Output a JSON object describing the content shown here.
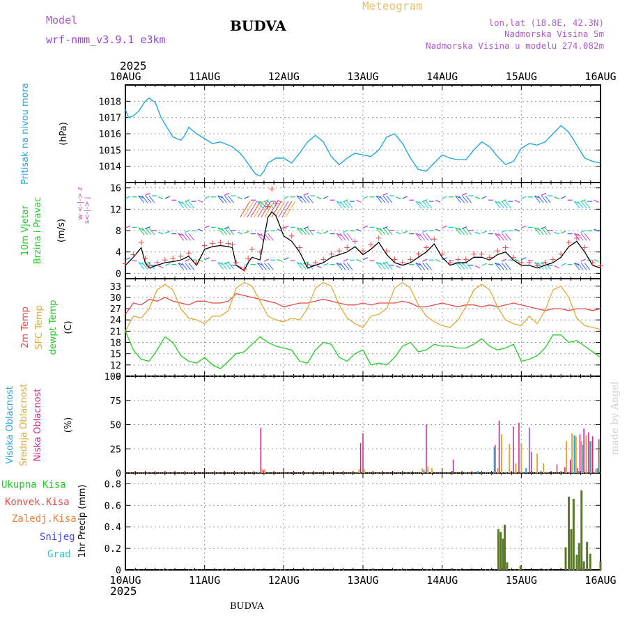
{
  "header": {
    "model_label": "Model",
    "model_name": "wrf-nmm_v3.9.1 e3km",
    "station": "BUDVA",
    "meteogram": "Meteogram",
    "lonlat": "lon,lat (18.8E, 42.3N)",
    "elev": "Nadmorska Visina 5m",
    "elev_model": "Nadmorska Visina u modelu 274.082m",
    "year_top": "2025",
    "year_bottom": "2025",
    "footer": "BUDVA",
    "credit": "made by Angel"
  },
  "colors": {
    "pressure": "#22a7e0",
    "wind_green": "#22cc22",
    "wind_purple": "#cc44cc",
    "temp2m": "#e84848",
    "sfc": "#e0a838",
    "dewpt": "#22cc22",
    "cloud_high": "#22a7e0",
    "cloud_mid": "#e0a838",
    "cloud_low": "#cc2288",
    "rain_total": "#22cc22",
    "rain_conv": "#e84848",
    "rain_strat": "#f08030",
    "snow": "#4444ee",
    "graupel": "#22cccc",
    "precip_bar": "#5a7a28"
  },
  "chart_data": [
    {
      "type": "line",
      "title": "Pritisak na nivou mora",
      "ylabel": "(hPa)",
      "xlabel_ticks": [
        "10AUG",
        "11AUG",
        "12AUG",
        "13AUG",
        "14AUG",
        "15AUG",
        "16AUG"
      ],
      "ylim": [
        1013,
        1019
      ],
      "yticks": [
        1014,
        1015,
        1016,
        1017,
        1018
      ],
      "x_days": [
        0,
        0.04,
        0.1,
        0.17,
        0.25,
        0.3,
        0.38,
        0.45,
        0.5,
        0.6,
        0.7,
        0.75,
        0.8,
        0.9,
        1.0,
        1.1,
        1.2,
        1.25,
        1.35,
        1.45,
        1.5,
        1.6,
        1.65,
        1.7,
        1.75,
        1.8,
        1.9,
        2.0,
        2.1,
        2.2,
        2.3,
        2.4,
        2.5,
        2.6,
        2.7,
        2.8,
        2.9,
        3.0,
        3.1,
        3.2,
        3.3,
        3.4,
        3.5,
        3.6,
        3.7,
        3.8,
        3.9,
        4.0,
        4.1,
        4.2,
        4.3,
        4.4,
        4.5,
        4.6,
        4.7,
        4.8,
        4.9,
        5.0,
        5.1,
        5.2,
        5.3,
        5.4,
        5.5,
        5.6,
        5.7,
        5.8,
        5.9,
        6.0
      ],
      "values": [
        1017.5,
        1017.0,
        1017.1,
        1017.4,
        1018.0,
        1018.2,
        1017.9,
        1017.0,
        1016.6,
        1015.8,
        1015.6,
        1015.9,
        1016.4,
        1016.0,
        1015.7,
        1015.4,
        1015.5,
        1015.4,
        1015.2,
        1014.8,
        1014.5,
        1013.8,
        1013.5,
        1013.4,
        1013.7,
        1014.2,
        1014.5,
        1014.5,
        1014.2,
        1014.8,
        1015.5,
        1015.9,
        1015.5,
        1014.6,
        1014.1,
        1014.5,
        1014.8,
        1014.7,
        1014.6,
        1015.0,
        1015.8,
        1016.0,
        1015.4,
        1014.5,
        1013.8,
        1013.7,
        1014.2,
        1014.7,
        1014.5,
        1014.4,
        1014.4,
        1015.0,
        1015.5,
        1015.2,
        1014.6,
        1014.1,
        1014.3,
        1015.1,
        1015.4,
        1015.3,
        1015.5,
        1016.0,
        1016.5,
        1016.1,
        1015.3,
        1014.5,
        1014.3,
        1014.2
      ]
    },
    {
      "type": "line",
      "title": "10m Vjetar Brzina i Pravac",
      "ylabel": "(m/s)",
      "compass": "w <-|-> z  s<-|-> j",
      "ylim": [
        -1,
        17
      ],
      "yticks": [
        0,
        4,
        8,
        12,
        16
      ],
      "x_days": [
        0,
        0.1,
        0.2,
        0.25,
        0.3,
        0.4,
        0.5,
        0.6,
        0.7,
        0.8,
        0.9,
        1.0,
        1.1,
        1.2,
        1.3,
        1.35,
        1.4,
        1.5,
        1.55,
        1.6,
        1.7,
        1.8,
        1.85,
        1.9,
        2.0,
        2.1,
        2.2,
        2.3,
        2.4,
        2.5,
        2.6,
        2.7,
        2.8,
        2.9,
        3.0,
        3.1,
        3.2,
        3.3,
        3.4,
        3.5,
        3.6,
        3.7,
        3.8,
        3.9,
        4.0,
        4.1,
        4.2,
        4.3,
        4.4,
        4.5,
        4.6,
        4.7,
        4.8,
        4.9,
        5.0,
        5.1,
        5.2,
        5.3,
        5.4,
        5.5,
        5.6,
        5.7,
        5.8,
        5.9,
        6.0
      ],
      "speed_values": [
        1.5,
        3.0,
        4.8,
        2.0,
        1.0,
        1.5,
        2.0,
        2.2,
        2.5,
        3.2,
        1.5,
        4.5,
        5.0,
        5.2,
        5.0,
        4.8,
        1.5,
        0.5,
        2.0,
        3.0,
        2.5,
        10.5,
        11.5,
        10.8,
        7.0,
        6.0,
        4.0,
        1.0,
        1.5,
        2.0,
        3.0,
        3.5,
        4.0,
        5.0,
        3.5,
        4.5,
        5.8,
        3.5,
        2.0,
        1.5,
        2.0,
        3.0,
        4.0,
        5.5,
        3.0,
        1.5,
        2.0,
        2.0,
        3.0,
        3.0,
        2.5,
        3.5,
        4.0,
        2.5,
        1.5,
        1.5,
        1.0,
        1.5,
        2.0,
        3.0,
        5.0,
        6.0,
        4.0,
        1.5,
        1.0
      ],
      "gust_values": [
        1.8,
        3.5,
        5.8,
        2.8,
        1.4,
        2.0,
        2.5,
        2.8,
        3.2,
        3.8,
        2.0,
        5.2,
        5.6,
        5.8,
        5.6,
        5.4,
        2.0,
        0.8,
        2.8,
        4.5,
        4.0,
        12.5,
        15.8,
        13.0,
        8.5,
        7.0,
        4.8,
        1.6,
        2.0,
        2.6,
        3.6,
        4.2,
        4.8,
        6.0,
        4.2,
        5.4,
        6.6,
        4.2,
        2.6,
        2.0,
        2.6,
        3.6,
        4.8,
        6.4,
        3.6,
        2.0,
        2.6,
        2.6,
        3.6,
        3.6,
        3.0,
        4.2,
        4.8,
        3.0,
        2.0,
        2.0,
        1.4,
        2.0,
        2.6,
        3.6,
        5.8,
        6.6,
        4.8,
        2.0,
        1.4
      ]
    },
    {
      "type": "line",
      "title": "2m Temp / SFC Temp / dewpt Temp",
      "ylabel": "(C)",
      "ylim": [
        9,
        35
      ],
      "yticks": [
        9,
        12,
        15,
        18,
        21,
        24,
        27,
        30,
        33
      ],
      "x_days": [
        0,
        0.1,
        0.2,
        0.3,
        0.4,
        0.5,
        0.6,
        0.7,
        0.8,
        0.9,
        1.0,
        1.1,
        1.2,
        1.3,
        1.4,
        1.5,
        1.6,
        1.7,
        1.8,
        1.9,
        2.0,
        2.1,
        2.2,
        2.3,
        2.4,
        2.5,
        2.6,
        2.7,
        2.8,
        2.9,
        3.0,
        3.1,
        3.2,
        3.3,
        3.4,
        3.5,
        3.6,
        3.7,
        3.8,
        3.9,
        4.0,
        4.1,
        4.2,
        4.3,
        4.4,
        4.5,
        4.6,
        4.7,
        4.8,
        4.9,
        5.0,
        5.1,
        5.2,
        5.3,
        5.4,
        5.5,
        5.6,
        5.7,
        5.8,
        5.9,
        6.0
      ],
      "series": [
        {
          "name": "2m Temp",
          "values": [
            25.5,
            28.5,
            28.0,
            29.5,
            29.0,
            30.0,
            29.0,
            28.5,
            28.0,
            29.0,
            29.0,
            28.5,
            28.5,
            29.0,
            31.0,
            30.5,
            30.0,
            29.5,
            29.0,
            28.5,
            27.5,
            28.0,
            28.5,
            28.5,
            29.0,
            29.5,
            29.0,
            28.5,
            28.0,
            28.0,
            28.5,
            28.0,
            28.5,
            28.5,
            28.5,
            29.0,
            28.5,
            27.5,
            27.5,
            28.0,
            28.5,
            28.0,
            27.5,
            28.0,
            28.0,
            27.5,
            28.0,
            27.5,
            28.0,
            28.5,
            28.0,
            27.5,
            27.0,
            26.5,
            27.0,
            27.0,
            26.5,
            27.0,
            27.0,
            26.5,
            27.0
          ]
        },
        {
          "name": "SFC Temp",
          "values": [
            21.0,
            25.0,
            24.5,
            27.0,
            32.0,
            33.5,
            32.0,
            27.0,
            24.5,
            24.0,
            23.0,
            25.0,
            25.0,
            26.5,
            32.5,
            34.0,
            33.0,
            29.0,
            25.0,
            24.0,
            23.5,
            24.5,
            24.0,
            27.0,
            32.5,
            34.0,
            33.0,
            28.0,
            24.5,
            23.0,
            22.0,
            25.0,
            25.5,
            27.0,
            32.5,
            34.0,
            32.5,
            28.0,
            25.0,
            23.5,
            22.5,
            22.0,
            24.0,
            27.5,
            32.0,
            33.5,
            32.0,
            27.5,
            24.0,
            23.0,
            22.5,
            25.0,
            23.0,
            26.5,
            32.0,
            33.0,
            30.0,
            24.5,
            22.5,
            22.0,
            21.5
          ]
        },
        {
          "name": "dewpt Temp",
          "values": [
            21.0,
            16.0,
            13.5,
            13.0,
            16.0,
            19.5,
            18.0,
            14.5,
            13.0,
            12.5,
            14.0,
            12.0,
            11.0,
            13.0,
            15.0,
            15.5,
            17.5,
            19.5,
            18.0,
            17.0,
            16.5,
            16.0,
            13.0,
            12.5,
            16.0,
            18.0,
            17.5,
            14.0,
            13.0,
            15.0,
            16.0,
            12.0,
            12.5,
            12.0,
            14.0,
            17.0,
            18.0,
            15.5,
            16.0,
            17.5,
            17.0,
            17.0,
            16.5,
            16.5,
            17.5,
            19.0,
            17.0,
            16.0,
            16.5,
            17.5,
            13.0,
            13.5,
            14.5,
            16.5,
            20.0,
            20.0,
            18.0,
            18.5,
            17.0,
            15.5,
            14.0
          ]
        }
      ]
    },
    {
      "type": "bar",
      "title": "Visoka / Srednja / Niska Oblacnost",
      "ylabel": "(%)",
      "ylim": [
        0,
        100
      ],
      "yticks": [
        0,
        25,
        50,
        75,
        100
      ],
      "series": [
        {
          "name": "Niska Oblacnost",
          "x_days": [
            1.71,
            1.75,
            2.97,
            3.0,
            3.8,
            4.14,
            4.67,
            4.72,
            4.9,
            4.97,
            5.1,
            5.13,
            5.45,
            5.55,
            5.62,
            5.71,
            5.74,
            5.79,
            5.85,
            5.9,
            5.98
          ],
          "values": [
            47,
            3,
            31,
            41,
            50,
            14,
            29,
            54,
            48,
            52,
            47,
            22,
            9,
            6,
            14,
            5,
            40,
            46,
            42,
            38,
            35
          ]
        },
        {
          "name": "Srednja Oblacnost",
          "x_days": [
            1.73,
            1.76,
            2.95,
            3.02,
            3.75,
            3.82,
            3.87,
            4.7,
            4.75,
            4.85,
            4.93,
            5.0,
            5.2,
            5.28,
            5.57,
            5.64,
            5.69,
            5.76,
            5.82,
            5.88,
            5.94
          ],
          "values": [
            4,
            4,
            4,
            4,
            5,
            7,
            5,
            5,
            40,
            30,
            10,
            31,
            20,
            10,
            33,
            41,
            38,
            33,
            39,
            33,
            4
          ]
        },
        {
          "name": "Visoka Oblacnost",
          "x_days": [
            1.68,
            3.0,
            3.77,
            4.3,
            4.45,
            4.55,
            4.66,
            4.8,
            5.06,
            5.32,
            5.6,
            5.67,
            5.72,
            5.78,
            5.87,
            5.96
          ],
          "values": [
            1,
            1,
            3,
            1,
            2,
            1,
            27,
            1,
            5,
            1,
            1,
            39,
            2,
            29,
            33,
            5
          ]
        }
      ]
    },
    {
      "type": "bar",
      "title": "1hr Precip",
      "ylabel": "1hr Precip (mm)",
      "legend": [
        "Ukupna Kisa",
        "Konvek.Kisa",
        "Zaledj.Kisa",
        "Snijeg",
        "Grad"
      ],
      "ylim": [
        0,
        0.9
      ],
      "yticks": [
        0,
        0.2,
        0.4,
        0.6,
        0.8
      ],
      "x_days": [
        4.71,
        4.74,
        4.77,
        4.79,
        4.82,
        4.99,
        5.56,
        5.6,
        5.63,
        5.66,
        5.7,
        5.73,
        5.76,
        5.79,
        5.83,
        5.87,
        6.0
      ],
      "values": [
        0.38,
        0.35,
        0.29,
        0.42,
        0.07,
        0.04,
        0.21,
        0.68,
        0.38,
        0.66,
        0.14,
        0.25,
        0.74,
        0.08,
        0.26,
        0.15,
        0.08
      ]
    }
  ]
}
